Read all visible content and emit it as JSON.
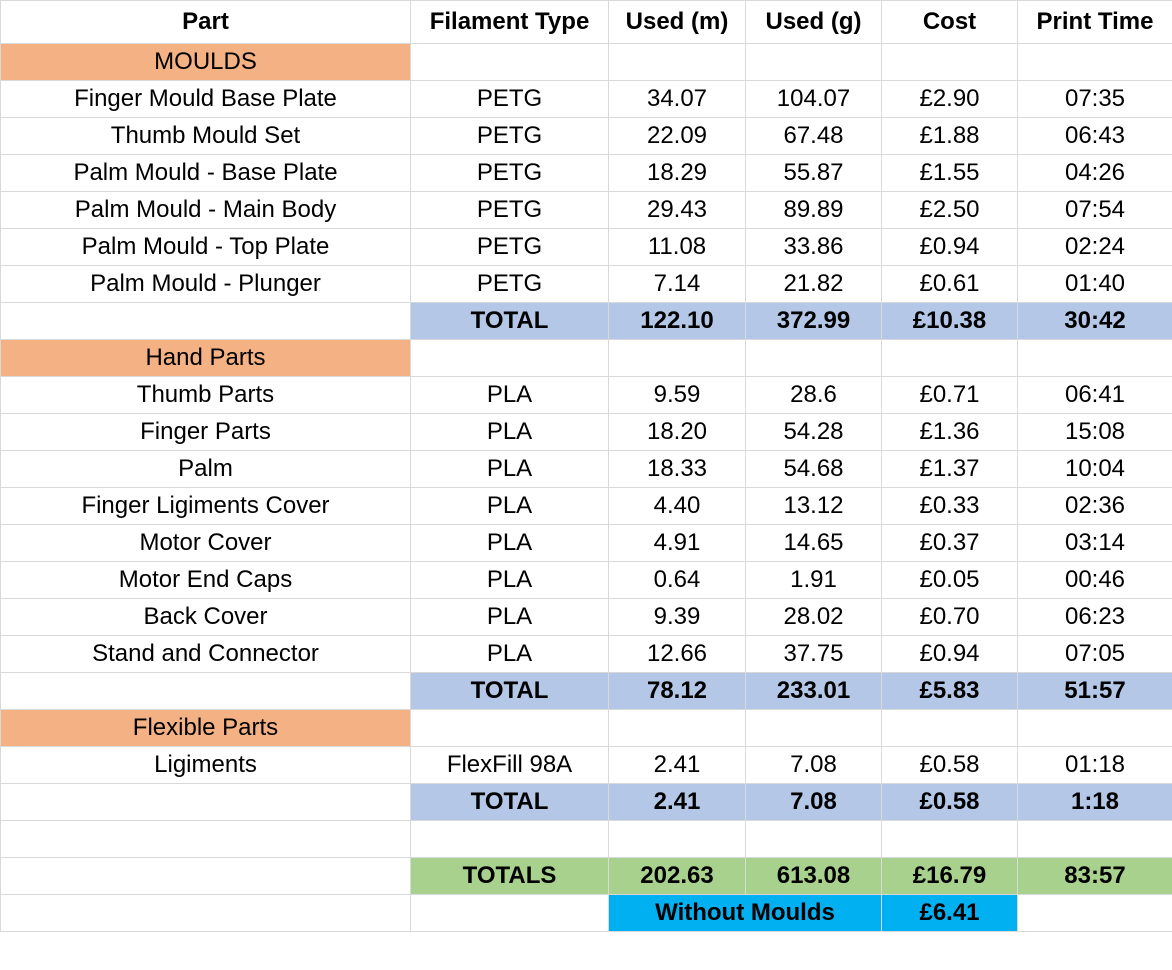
{
  "headers": [
    "Part",
    "Filament Type",
    "Used (m)",
    "Used (g)",
    "Cost",
    "Print Time"
  ],
  "sections": [
    {
      "name": "MOULDS",
      "rows": [
        [
          "Finger Mould Base Plate",
          "PETG",
          "34.07",
          "104.07",
          "£2.90",
          "07:35"
        ],
        [
          "Thumb Mould Set",
          "PETG",
          "22.09",
          "67.48",
          "£1.88",
          "06:43"
        ],
        [
          "Palm Mould - Base Plate",
          "PETG",
          "18.29",
          "55.87",
          "£1.55",
          "04:26"
        ],
        [
          "Palm Mould - Main Body",
          "PETG",
          "29.43",
          "89.89",
          "£2.50",
          "07:54"
        ],
        [
          "Palm Mould - Top Plate",
          "PETG",
          "11.08",
          "33.86",
          "£0.94",
          "02:24"
        ],
        [
          "Palm Mould - Plunger",
          "PETG",
          "7.14",
          "21.82",
          "£0.61",
          "01:40"
        ]
      ],
      "total": [
        "TOTAL",
        "122.10",
        "372.99",
        "£10.38",
        "30:42"
      ]
    },
    {
      "name": "Hand Parts",
      "rows": [
        [
          "Thumb Parts",
          "PLA",
          "9.59",
          "28.6",
          "£0.71",
          "06:41"
        ],
        [
          "Finger Parts",
          "PLA",
          "18.20",
          "54.28",
          "£1.36",
          "15:08"
        ],
        [
          "Palm",
          "PLA",
          "18.33",
          "54.68",
          "£1.37",
          "10:04"
        ],
        [
          "Finger Ligiments Cover",
          "PLA",
          "4.40",
          "13.12",
          "£0.33",
          "02:36"
        ],
        [
          "Motor Cover",
          "PLA",
          "4.91",
          "14.65",
          "£0.37",
          "03:14"
        ],
        [
          "Motor End Caps",
          "PLA",
          "0.64",
          "1.91",
          "£0.05",
          "00:46"
        ],
        [
          "Back Cover",
          "PLA",
          "9.39",
          "28.02",
          "£0.70",
          "06:23"
        ],
        [
          "Stand and Connector",
          "PLA",
          "12.66",
          "37.75",
          "£0.94",
          "07:05"
        ]
      ],
      "total": [
        "TOTAL",
        "78.12",
        "233.01",
        "£5.83",
        "51:57"
      ]
    },
    {
      "name": "Flexible Parts",
      "rows": [
        [
          "Ligiments",
          "FlexFill 98A",
          "2.41",
          "7.08",
          "£0.58",
          "01:18"
        ]
      ],
      "total": [
        "TOTAL",
        "2.41",
        "7.08",
        "£0.58",
        "1:18"
      ]
    }
  ],
  "totals": [
    "TOTALS",
    "202.63",
    "613.08",
    "£16.79",
    "83:57"
  ],
  "without_moulds": {
    "label": "Without Moulds",
    "value": "£6.41"
  },
  "colors": {
    "section": "#f4b183",
    "total": "#b4c7e7",
    "grand_total": "#a9d18e",
    "without_moulds": "#00b0f0",
    "gridline": "#d9d9d9"
  }
}
